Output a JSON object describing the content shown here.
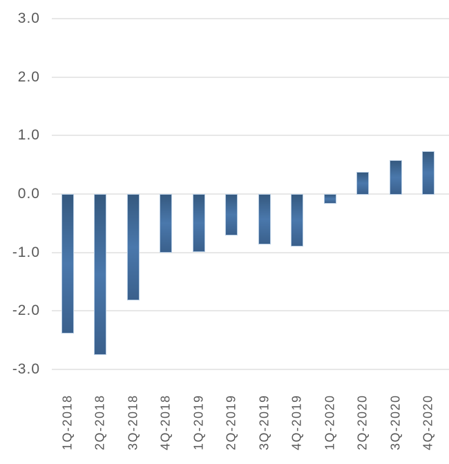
{
  "chart_data": {
    "type": "bar",
    "title": "",
    "xlabel": "",
    "ylabel": "",
    "categories": [
      "1Q-2018",
      "2Q-2018",
      "3Q-2018",
      "4Q-2018",
      "1Q-2019",
      "2Q-2019",
      "3Q-2019",
      "4Q-2019",
      "1Q-2020",
      "2Q-2020",
      "3Q-2020",
      "4Q-2020"
    ],
    "values": [
      -2.36,
      -2.73,
      -1.8,
      -0.98,
      -0.97,
      -0.68,
      -0.84,
      -0.88,
      -0.14,
      0.37,
      0.57,
      0.72
    ],
    "y_tick_labels": [
      "3.0",
      "2.0",
      "1.0",
      "0.0",
      "-1.0",
      "-2.0",
      "-3.0"
    ],
    "y_tick_values": [
      3,
      2,
      1,
      0,
      -1,
      -2,
      -3
    ],
    "ylim": [
      -3.0,
      3.0
    ],
    "grid": true,
    "legend_position": "none",
    "colors": {
      "bar_fill_dark": "#35597f",
      "bar_fill_light": "#4a78ac",
      "bar_outline": "#b5cbe2",
      "gridline": "#e7e7e7",
      "tick_label": "#595959",
      "background": "#ffffff"
    }
  }
}
